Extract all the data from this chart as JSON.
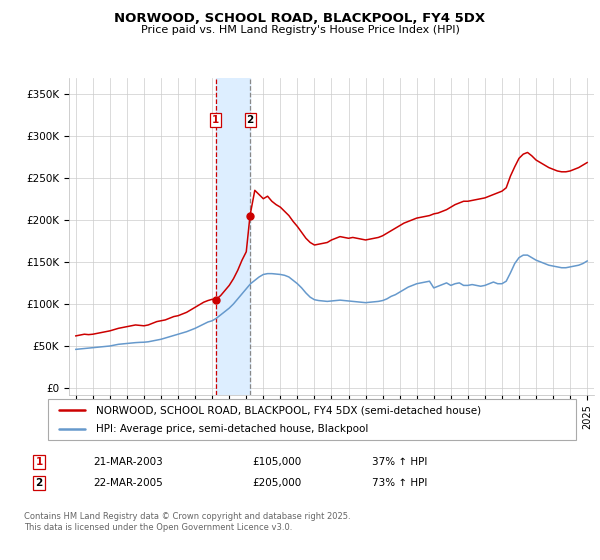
{
  "title": "NORWOOD, SCHOOL ROAD, BLACKPOOL, FY4 5DX",
  "subtitle": "Price paid vs. HM Land Registry's House Price Index (HPI)",
  "ylabel_ticks": [
    "£0",
    "£50K",
    "£100K",
    "£150K",
    "£200K",
    "£250K",
    "£300K",
    "£350K"
  ],
  "ylabel_values": [
    0,
    50000,
    100000,
    150000,
    200000,
    250000,
    300000,
    350000
  ],
  "ylim": [
    -8000,
    368000
  ],
  "legend_line1": "NORWOOD, SCHOOL ROAD, BLACKPOOL, FY4 5DX (semi-detached house)",
  "legend_line2": "HPI: Average price, semi-detached house, Blackpool",
  "sale1_date": "21-MAR-2003",
  "sale1_price": "£105,000",
  "sale1_hpi": "37% ↑ HPI",
  "sale1_x": 2003.22,
  "sale1_y": 105000,
  "sale2_date": "22-MAR-2005",
  "sale2_price": "£205,000",
  "sale2_hpi": "73% ↑ HPI",
  "sale2_x": 2005.22,
  "sale2_y": 205000,
  "vline1_x": 2003.22,
  "vline2_x": 2005.22,
  "shade_x1": 2003.22,
  "shade_x2": 2005.22,
  "red_line_color": "#cc0000",
  "blue_line_color": "#6699cc",
  "shade_color": "#ddeeff",
  "footer": "Contains HM Land Registry data © Crown copyright and database right 2025.\nThis data is licensed under the Open Government Licence v3.0.",
  "xlim_min": 1994.6,
  "xlim_max": 2025.4,
  "red_series_x": [
    1995.0,
    1995.25,
    1995.5,
    1995.75,
    1996.0,
    1996.25,
    1996.5,
    1996.75,
    1997.0,
    1997.25,
    1997.5,
    1997.75,
    1998.0,
    1998.25,
    1998.5,
    1998.75,
    1999.0,
    1999.25,
    1999.5,
    1999.75,
    2000.0,
    2000.25,
    2000.5,
    2000.75,
    2001.0,
    2001.25,
    2001.5,
    2001.75,
    2002.0,
    2002.25,
    2002.5,
    2002.75,
    2003.0,
    2003.22,
    2003.5,
    2003.75,
    2004.0,
    2004.25,
    2004.5,
    2004.75,
    2005.0,
    2005.22,
    2005.5,
    2005.75,
    2006.0,
    2006.25,
    2006.5,
    2006.75,
    2007.0,
    2007.25,
    2007.5,
    2007.75,
    2008.0,
    2008.25,
    2008.5,
    2008.75,
    2009.0,
    2009.25,
    2009.5,
    2009.75,
    2010.0,
    2010.25,
    2010.5,
    2010.75,
    2011.0,
    2011.25,
    2011.5,
    2011.75,
    2012.0,
    2012.25,
    2012.5,
    2012.75,
    2013.0,
    2013.25,
    2013.5,
    2013.75,
    2014.0,
    2014.25,
    2014.5,
    2014.75,
    2015.0,
    2015.25,
    2015.5,
    2015.75,
    2016.0,
    2016.25,
    2016.5,
    2016.75,
    2017.0,
    2017.25,
    2017.5,
    2017.75,
    2018.0,
    2018.25,
    2018.5,
    2018.75,
    2019.0,
    2019.25,
    2019.5,
    2019.75,
    2020.0,
    2020.25,
    2020.5,
    2020.75,
    2021.0,
    2021.25,
    2021.5,
    2021.75,
    2022.0,
    2022.25,
    2022.5,
    2022.75,
    2023.0,
    2023.25,
    2023.5,
    2023.75,
    2024.0,
    2024.25,
    2024.5,
    2024.75,
    2025.0
  ],
  "red_series_y": [
    62000,
    63000,
    64000,
    63500,
    64000,
    65000,
    66000,
    67000,
    68000,
    69500,
    71000,
    72000,
    73000,
    74000,
    75000,
    74500,
    74000,
    75000,
    77000,
    79000,
    80000,
    81000,
    83000,
    85000,
    86000,
    88000,
    90000,
    93000,
    96000,
    99000,
    102000,
    104000,
    105500,
    105000,
    110000,
    116000,
    122000,
    130000,
    140000,
    152000,
    162000,
    205000,
    235000,
    230000,
    225000,
    228000,
    222000,
    218000,
    215000,
    210000,
    205000,
    198000,
    192000,
    185000,
    178000,
    173000,
    170000,
    171000,
    172000,
    173000,
    176000,
    178000,
    180000,
    179000,
    178000,
    179000,
    178000,
    177000,
    176000,
    177000,
    178000,
    179000,
    181000,
    184000,
    187000,
    190000,
    193000,
    196000,
    198000,
    200000,
    202000,
    203000,
    204000,
    205000,
    207000,
    208000,
    210000,
    212000,
    215000,
    218000,
    220000,
    222000,
    222000,
    223000,
    224000,
    225000,
    226000,
    228000,
    230000,
    232000,
    234000,
    238000,
    252000,
    263000,
    273000,
    278000,
    280000,
    276000,
    271000,
    268000,
    265000,
    262000,
    260000,
    258000,
    257000,
    257000,
    258000,
    260000,
    262000,
    265000,
    268000
  ],
  "blue_series_x": [
    1995.0,
    1995.25,
    1995.5,
    1995.75,
    1996.0,
    1996.25,
    1996.5,
    1996.75,
    1997.0,
    1997.25,
    1997.5,
    1997.75,
    1998.0,
    1998.25,
    1998.5,
    1998.75,
    1999.0,
    1999.25,
    1999.5,
    1999.75,
    2000.0,
    2000.25,
    2000.5,
    2000.75,
    2001.0,
    2001.25,
    2001.5,
    2001.75,
    2002.0,
    2002.25,
    2002.5,
    2002.75,
    2003.0,
    2003.25,
    2003.5,
    2003.75,
    2004.0,
    2004.25,
    2004.5,
    2004.75,
    2005.0,
    2005.25,
    2005.5,
    2005.75,
    2006.0,
    2006.25,
    2006.5,
    2006.75,
    2007.0,
    2007.25,
    2007.5,
    2007.75,
    2008.0,
    2008.25,
    2008.5,
    2008.75,
    2009.0,
    2009.25,
    2009.5,
    2009.75,
    2010.0,
    2010.25,
    2010.5,
    2010.75,
    2011.0,
    2011.25,
    2011.5,
    2011.75,
    2012.0,
    2012.25,
    2012.5,
    2012.75,
    2013.0,
    2013.25,
    2013.5,
    2013.75,
    2014.0,
    2014.25,
    2014.5,
    2014.75,
    2015.0,
    2015.25,
    2015.5,
    2015.75,
    2016.0,
    2016.25,
    2016.5,
    2016.75,
    2017.0,
    2017.25,
    2017.5,
    2017.75,
    2018.0,
    2018.25,
    2018.5,
    2018.75,
    2019.0,
    2019.25,
    2019.5,
    2019.75,
    2020.0,
    2020.25,
    2020.5,
    2020.75,
    2021.0,
    2021.25,
    2021.5,
    2021.75,
    2022.0,
    2022.25,
    2022.5,
    2022.75,
    2023.0,
    2023.25,
    2023.5,
    2023.75,
    2024.0,
    2024.25,
    2024.5,
    2024.75,
    2025.0
  ],
  "blue_series_y": [
    46000,
    46500,
    47000,
    47500,
    48000,
    48500,
    49000,
    49500,
    50000,
    51000,
    52000,
    52500,
    53000,
    53500,
    54000,
    54300,
    54500,
    55000,
    56000,
    57000,
    58000,
    59500,
    61000,
    62500,
    64000,
    65500,
    67000,
    69000,
    71000,
    73500,
    76000,
    78500,
    80000,
    83000,
    87000,
    91000,
    95000,
    100000,
    106000,
    112000,
    118000,
    124000,
    128000,
    132000,
    135000,
    136000,
    136000,
    135500,
    135000,
    134000,
    132000,
    128000,
    124000,
    119000,
    113000,
    108000,
    105000,
    104000,
    103500,
    103000,
    103500,
    104000,
    104500,
    104000,
    103500,
    103000,
    102500,
    102000,
    101500,
    102000,
    102500,
    103000,
    104000,
    106000,
    109000,
    111000,
    114000,
    117000,
    120000,
    122000,
    124000,
    125000,
    126000,
    127000,
    119000,
    121000,
    123000,
    125000,
    122000,
    124000,
    125000,
    122000,
    122000,
    123000,
    122000,
    121000,
    122000,
    124000,
    126000,
    124000,
    124000,
    127000,
    137000,
    148000,
    155000,
    158000,
    158000,
    155000,
    152000,
    150000,
    148000,
    146000,
    145000,
    144000,
    143000,
    143000,
    144000,
    145000,
    146000,
    148000,
    151000
  ]
}
